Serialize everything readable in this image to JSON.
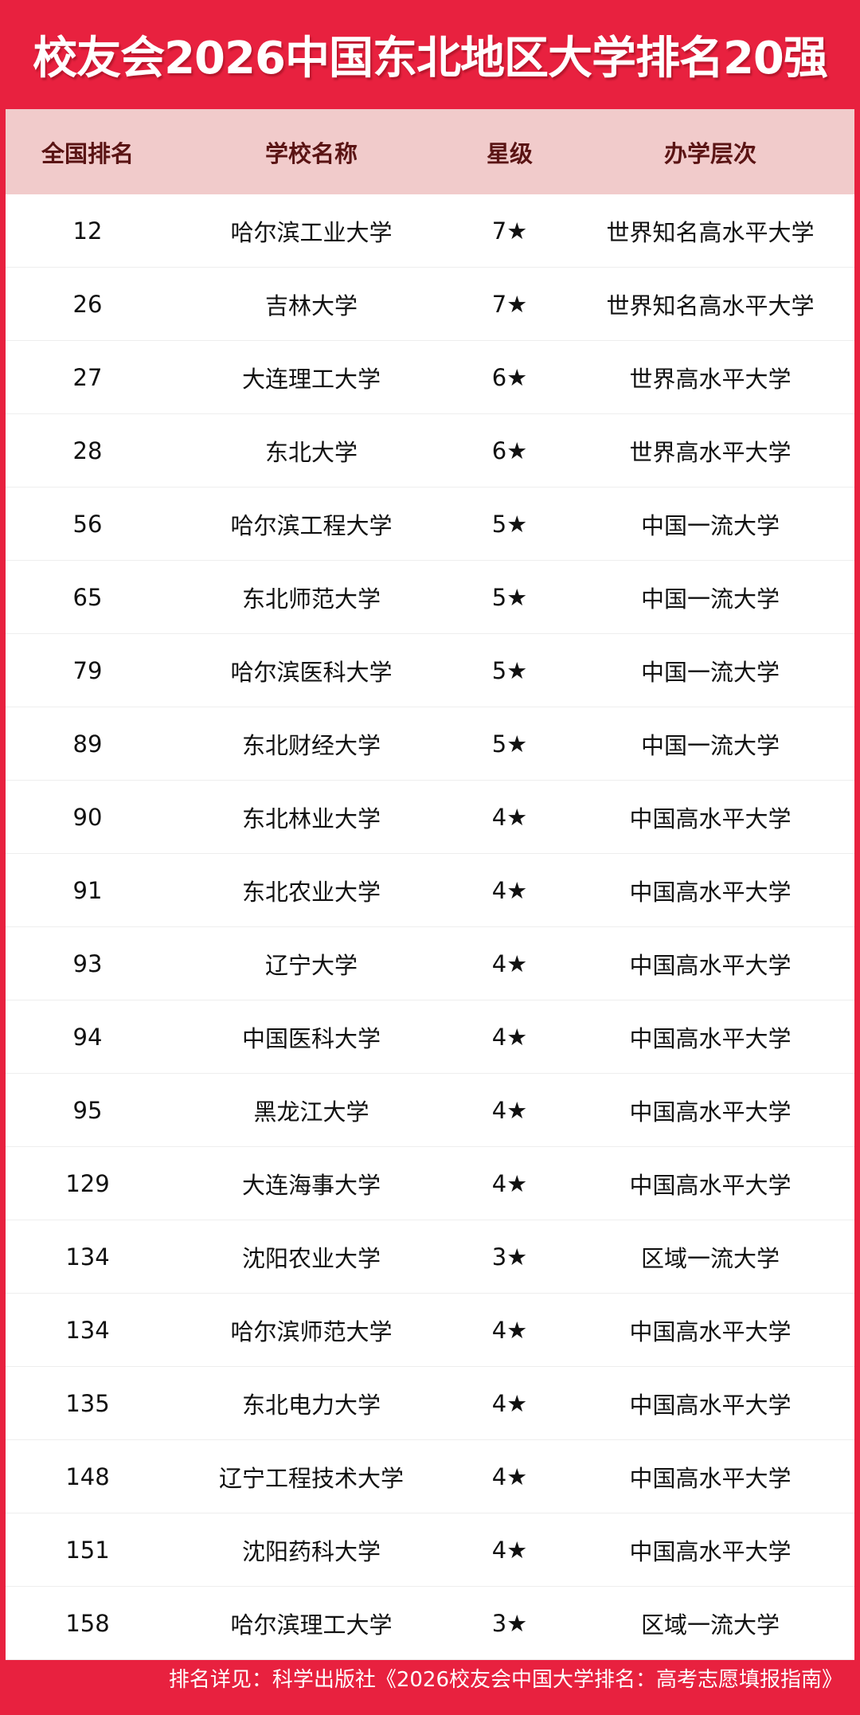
{
  "title": "校友会2026中国东北地区大学排名20强",
  "colors": {
    "brand_red": "#e8213f",
    "header_bg": "#f1cbcb",
    "header_text": "#5a1414"
  },
  "table": {
    "columns": [
      "全国排名",
      "学校名称",
      "星级",
      "办学层次"
    ],
    "rows": [
      [
        "12",
        "哈尔滨工业大学",
        "7★",
        "世界知名高水平大学"
      ],
      [
        "26",
        "吉林大学",
        "7★",
        "世界知名高水平大学"
      ],
      [
        "27",
        "大连理工大学",
        "6★",
        "世界高水平大学"
      ],
      [
        "28",
        "东北大学",
        "6★",
        "世界高水平大学"
      ],
      [
        "56",
        "哈尔滨工程大学",
        "5★",
        "中国一流大学"
      ],
      [
        "65",
        "东北师范大学",
        "5★",
        "中国一流大学"
      ],
      [
        "79",
        "哈尔滨医科大学",
        "5★",
        "中国一流大学"
      ],
      [
        "89",
        "东北财经大学",
        "5★",
        "中国一流大学"
      ],
      [
        "90",
        "东北林业大学",
        "4★",
        "中国高水平大学"
      ],
      [
        "91",
        "东北农业大学",
        "4★",
        "中国高水平大学"
      ],
      [
        "93",
        "辽宁大学",
        "4★",
        "中国高水平大学"
      ],
      [
        "94",
        "中国医科大学",
        "4★",
        "中国高水平大学"
      ],
      [
        "95",
        "黑龙江大学",
        "4★",
        "中国高水平大学"
      ],
      [
        "129",
        "大连海事大学",
        "4★",
        "中国高水平大学"
      ],
      [
        "134",
        "沈阳农业大学",
        "3★",
        "区域一流大学"
      ],
      [
        "134",
        "哈尔滨师范大学",
        "4★",
        "中国高水平大学"
      ],
      [
        "135",
        "东北电力大学",
        "4★",
        "中国高水平大学"
      ],
      [
        "148",
        "辽宁工程技术大学",
        "4★",
        "中国高水平大学"
      ],
      [
        "151",
        "沈阳药科大学",
        "4★",
        "中国高水平大学"
      ],
      [
        "158",
        "哈尔滨理工大学",
        "3★",
        "区域一流大学"
      ]
    ]
  },
  "footer": "排名详见：科学出版社《2026校友会中国大学排名：高考志愿填报指南》"
}
